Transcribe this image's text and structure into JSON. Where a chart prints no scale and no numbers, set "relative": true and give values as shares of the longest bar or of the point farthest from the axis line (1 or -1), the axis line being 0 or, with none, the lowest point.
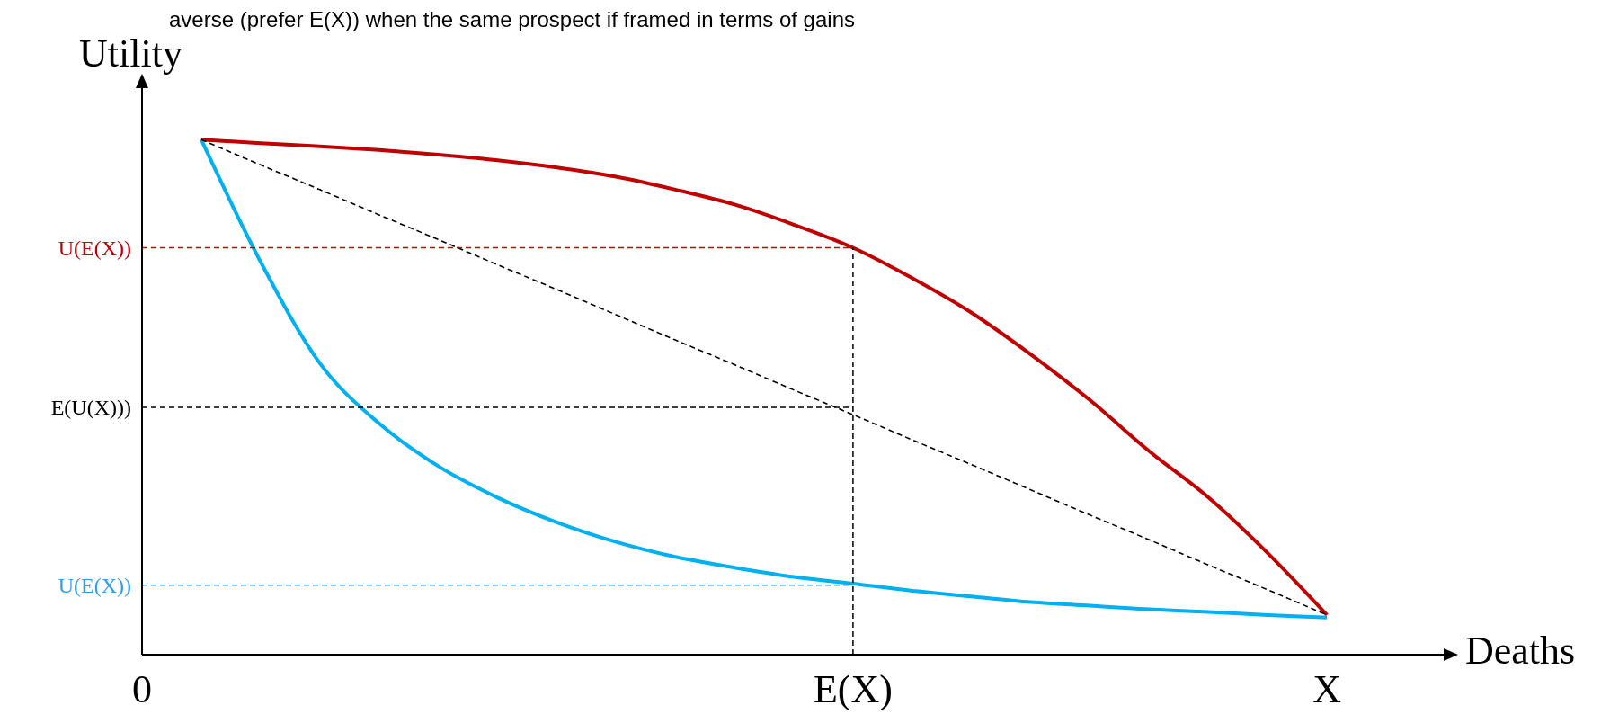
{
  "chart_data": {
    "type": "line",
    "title": "averse (prefer E(X)) when the same prospect if framed in terms of gains",
    "xlabel": "Deaths",
    "ylabel": "Utility",
    "relative": true,
    "categories": [
      "0",
      null,
      null,
      null,
      null,
      null,
      null,
      null,
      null,
      null,
      null,
      null,
      "E(X)",
      null,
      null,
      null,
      null,
      null,
      null,
      null,
      "X",
      null,
      null
    ],
    "series": [
      {
        "color": "#c00000",
        "values": [
          null,
          1.0,
          0.993,
          0.987,
          0.98,
          0.971,
          0.96,
          0.946,
          0.928,
          0.903,
          0.874,
          0.835,
          0.79,
          0.731,
          0.664,
          0.583,
          0.494,
          0.395,
          0.305,
          0.197,
          0.077,
          null,
          null
        ]
      },
      {
        "color": "#00b0f0",
        "values": [
          null,
          1.0,
          0.763,
          0.566,
          0.449,
          0.366,
          0.305,
          0.257,
          0.219,
          0.19,
          0.169,
          0.151,
          0.138,
          0.124,
          0.113,
          0.102,
          0.095,
          0.088,
          0.083,
          0.077,
          0.072,
          null,
          null
        ]
      },
      {
        "color": "#000000",
        "line_style": "dashed",
        "values": [
          null,
          1.0,
          0.951,
          0.903,
          0.854,
          0.806,
          0.757,
          0.709,
          0.66,
          0.611,
          0.563,
          0.514,
          0.466,
          0.417,
          0.369,
          0.32,
          0.271,
          0.223,
          0.174,
          0.126,
          0.077,
          null,
          null
        ]
      }
    ],
    "ref_lines": [
      {
        "axis": "y",
        "value": 0.79,
        "label": "U(E(X))",
        "color": "#c00000",
        "line_style": "dashed"
      },
      {
        "axis": "y",
        "value": 0.48,
        "label": "E(U(X)))",
        "color": "#000000",
        "line_style": "dashed"
      },
      {
        "axis": "y",
        "value": 0.135,
        "label": "U(E(X))",
        "color": "#2f9cf0",
        "line_style": "dashed"
      },
      {
        "axis": "x",
        "value": "E(X)",
        "color": "#000000",
        "line_style": "dashed"
      }
    ]
  }
}
